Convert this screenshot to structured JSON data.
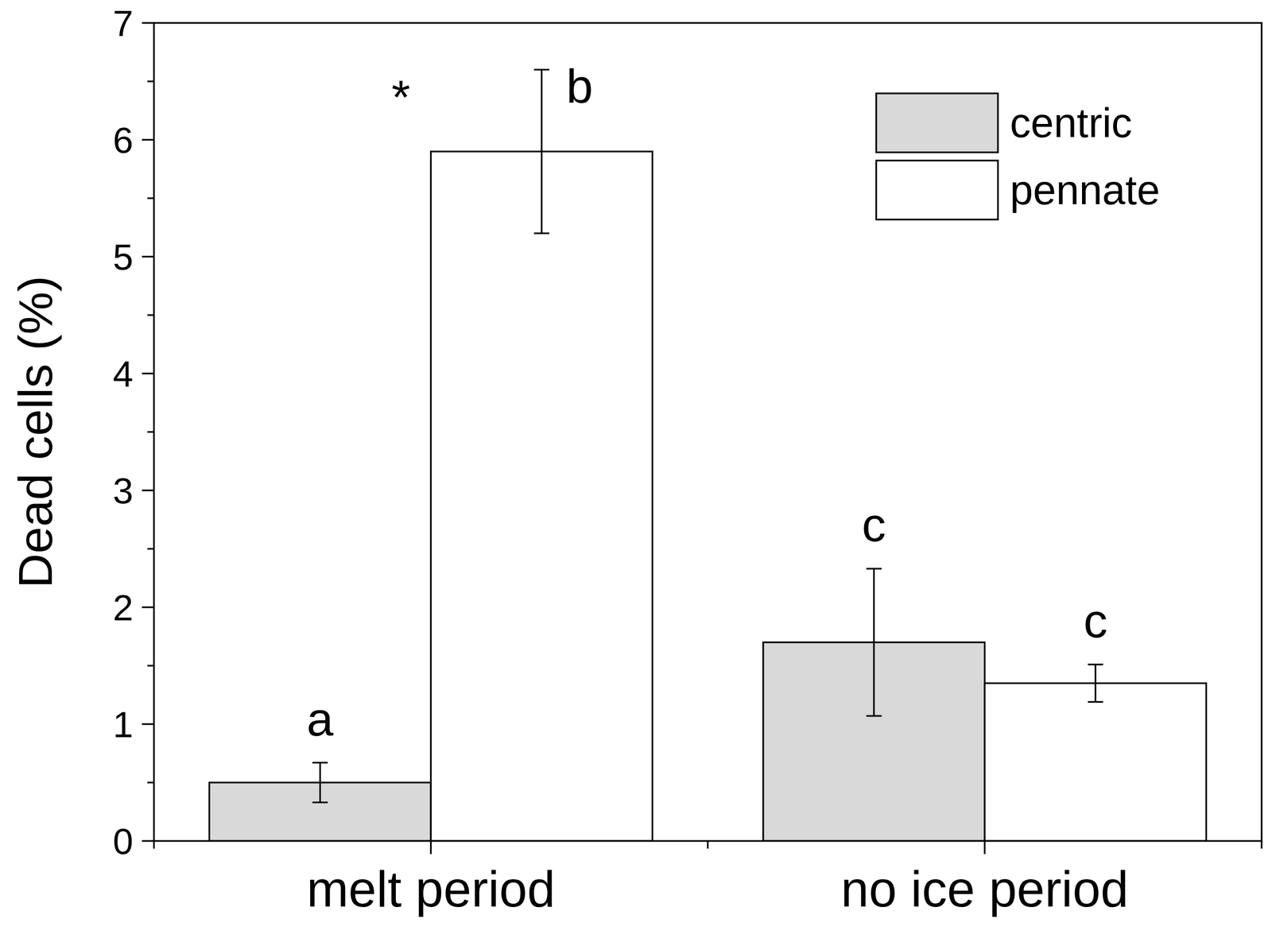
{
  "chart_data": {
    "type": "bar",
    "y_label": "Dead cells (%)",
    "categories": [
      "melt period",
      "no ice period"
    ],
    "series": [
      {
        "name": "centric",
        "color": "#d9d9d9",
        "values": [
          0.5,
          1.7
        ],
        "errors": [
          0.17,
          0.63
        ],
        "letters": [
          "a",
          "c"
        ]
      },
      {
        "name": "pennate",
        "color": "#ffffff",
        "values": [
          5.9,
          1.35
        ],
        "errors": [
          0.7,
          0.16
        ],
        "letters": [
          "b",
          "c"
        ]
      }
    ],
    "annotations": [
      {
        "text": "*",
        "category": "melt period"
      }
    ],
    "ylim": [
      0,
      7
    ],
    "yticks": [
      0,
      1,
      2,
      3,
      4,
      5,
      6,
      7
    ],
    "grid": false,
    "legend": "upper right"
  }
}
